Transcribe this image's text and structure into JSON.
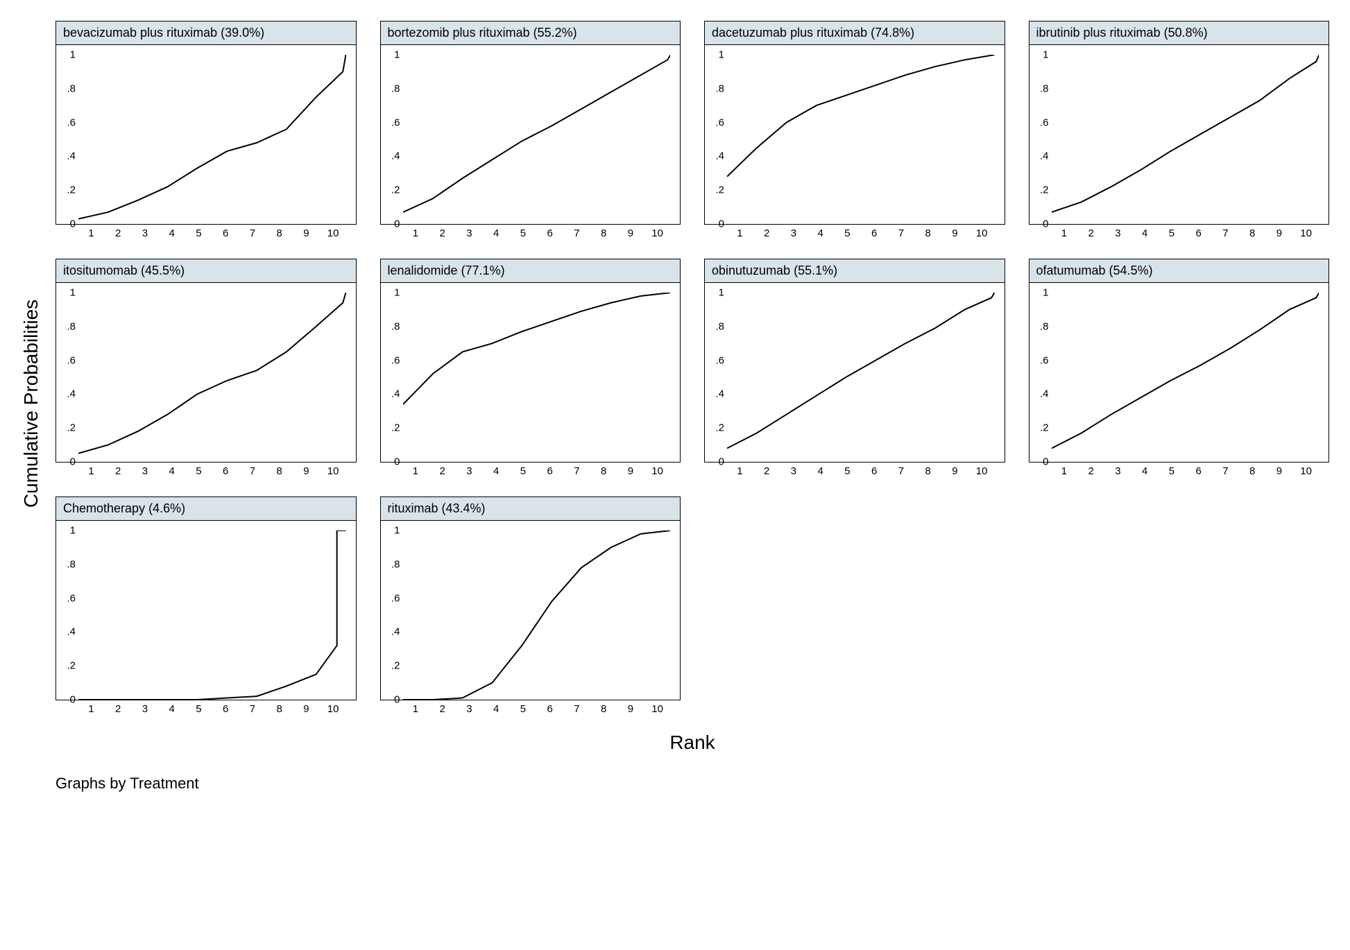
{
  "global": {
    "ylabel": "Cumulative Probabilities",
    "xlabel": "Rank",
    "footnote": "Graphs by Treatment",
    "x_ticks": [
      1,
      2,
      3,
      4,
      5,
      6,
      7,
      8,
      9,
      10
    ],
    "y_ticks": [
      0,
      0.2,
      0.4,
      0.6,
      0.8,
      1
    ],
    "y_tick_labels": [
      "0",
      ".2",
      ".4",
      ".6",
      ".8",
      "1"
    ],
    "xlim": [
      1,
      10
    ],
    "ylim": [
      0,
      1
    ],
    "line_color": "#000000",
    "line_width": 2.0,
    "title_bg": "#d8e3ea",
    "panel_bg": "#ffffff",
    "border_color": "#000000",
    "font_family": "Arial",
    "tick_fontsize": 15,
    "title_fontsize": 18,
    "axis_label_fontsize": 28,
    "grid_cols": 4,
    "grid_rows": 3
  },
  "panels": [
    {
      "title": "bevacizumab plus rituximab (39.0%)",
      "x": [
        1,
        2,
        3,
        4,
        5,
        6,
        7,
        8,
        9,
        9.9,
        10
      ],
      "y": [
        0.03,
        0.07,
        0.14,
        0.22,
        0.33,
        0.43,
        0.48,
        0.56,
        0.75,
        0.9,
        1.0
      ]
    },
    {
      "title": "bortezomib plus rituximab (55.2%)",
      "x": [
        1,
        2,
        3,
        4,
        5,
        6,
        7,
        8,
        9,
        9.9,
        10
      ],
      "y": [
        0.07,
        0.15,
        0.27,
        0.38,
        0.49,
        0.58,
        0.68,
        0.78,
        0.88,
        0.97,
        1.0
      ]
    },
    {
      "title": "dacetuzumab plus rituximab (74.8%)",
      "x": [
        1,
        2,
        3,
        4,
        5,
        6,
        7,
        8,
        9,
        10
      ],
      "y": [
        0.28,
        0.45,
        0.6,
        0.7,
        0.76,
        0.82,
        0.88,
        0.93,
        0.97,
        1.0
      ]
    },
    {
      "title": "ibrutinib plus rituximab (50.8%)",
      "x": [
        1,
        2,
        3,
        4,
        5,
        6,
        7,
        8,
        9,
        9.9,
        10
      ],
      "y": [
        0.07,
        0.13,
        0.22,
        0.32,
        0.43,
        0.53,
        0.63,
        0.73,
        0.86,
        0.96,
        1.0
      ]
    },
    {
      "title": "itositumomab (45.5%)",
      "x": [
        1,
        2,
        3,
        4,
        5,
        6,
        7,
        8,
        9,
        9.9,
        10
      ],
      "y": [
        0.05,
        0.1,
        0.18,
        0.28,
        0.4,
        0.48,
        0.54,
        0.65,
        0.8,
        0.94,
        1.0
      ]
    },
    {
      "title": "lenalidomide (77.1%)",
      "x": [
        1,
        2,
        3,
        4,
        5,
        6,
        7,
        8,
        9,
        10
      ],
      "y": [
        0.34,
        0.52,
        0.65,
        0.7,
        0.77,
        0.83,
        0.89,
        0.94,
        0.98,
        1.0
      ]
    },
    {
      "title": "obinutuzumab (55.1%)",
      "x": [
        1,
        2,
        3,
        4,
        5,
        6,
        7,
        8,
        9,
        9.9,
        10
      ],
      "y": [
        0.08,
        0.17,
        0.28,
        0.39,
        0.5,
        0.6,
        0.7,
        0.79,
        0.9,
        0.97,
        1.0
      ]
    },
    {
      "title": "ofatumumab (54.5%)",
      "x": [
        1,
        2,
        3,
        4,
        5,
        6,
        7,
        8,
        9,
        9.9,
        10
      ],
      "y": [
        0.08,
        0.17,
        0.28,
        0.38,
        0.48,
        0.57,
        0.67,
        0.78,
        0.9,
        0.97,
        1.0
      ]
    },
    {
      "title": "Chemotherapy (4.6%)",
      "x": [
        1,
        2,
        3,
        4,
        5,
        6,
        7,
        8,
        9,
        9.7,
        9.7,
        10
      ],
      "y": [
        0.0,
        0.0,
        0.0,
        0.0,
        0.0,
        0.01,
        0.02,
        0.08,
        0.15,
        0.32,
        1.0,
        1.0
      ]
    },
    {
      "title": "rituximab (43.4%)",
      "x": [
        1,
        2,
        3,
        4,
        5,
        6,
        7,
        8,
        9,
        10
      ],
      "y": [
        0.0,
        0.0,
        0.01,
        0.1,
        0.32,
        0.58,
        0.78,
        0.9,
        0.98,
        1.0
      ]
    }
  ]
}
